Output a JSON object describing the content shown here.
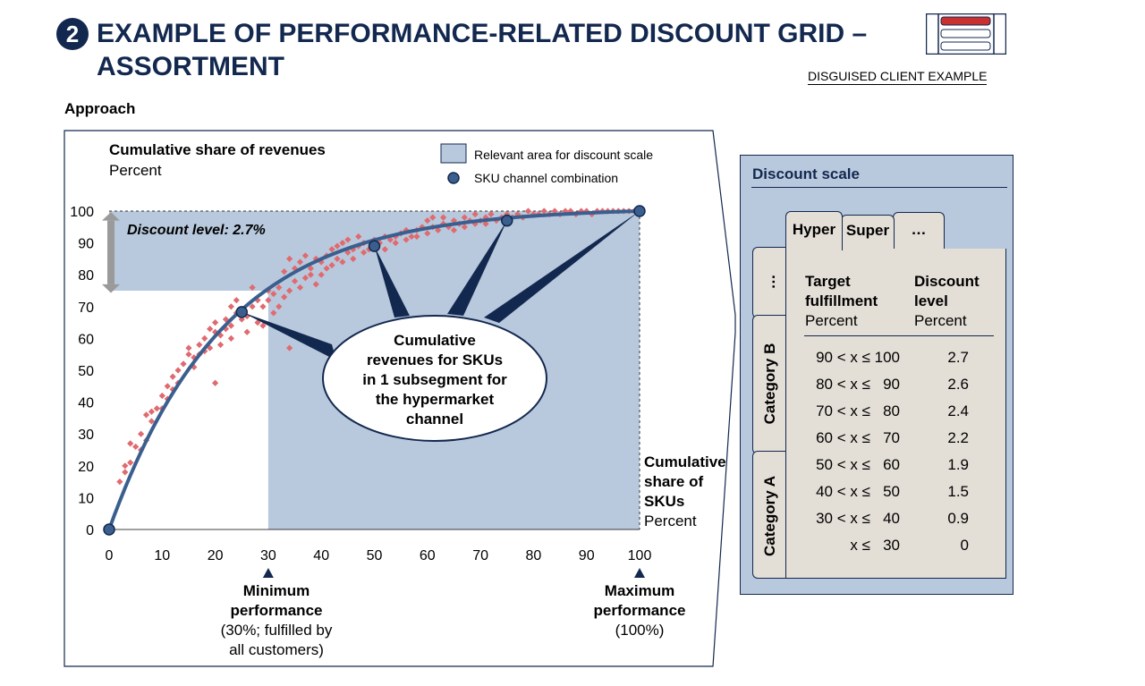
{
  "header": {
    "badge": "2",
    "title_line1": "EXAMPLE OF PERFORMANCE-RELATED DISCOUNT GRID –",
    "title_line2": "ASSORTMENT",
    "client_note": "DISGUISED CLIENT EXAMPLE",
    "section_label": "Approach"
  },
  "colors": {
    "navy": "#13284f",
    "curve": "#3a5f8f",
    "area": "#b8c9dd",
    "points": "#e06a6f",
    "arrow": "#9a9a9a",
    "logo_red": "#c8312f"
  },
  "chart_data": {
    "type": "scatter",
    "title": "Cumulative share of revenues",
    "ylabel_unit": "Percent",
    "xlabel_lines": [
      "Cumulative",
      "share of",
      "SKUs"
    ],
    "xlabel_unit": "Percent",
    "xlim": [
      0,
      100
    ],
    "ylim": [
      0,
      100
    ],
    "x_ticks": [
      0,
      10,
      20,
      30,
      40,
      50,
      60,
      70,
      80,
      90,
      100
    ],
    "y_ticks": [
      0,
      10,
      20,
      30,
      40,
      50,
      60,
      70,
      80,
      90,
      100
    ],
    "legend": {
      "area": "Relevant area for discount scale",
      "marker": "SKU channel combination"
    },
    "discount_label": "Discount level: 2.7%",
    "relevant_area": {
      "x_from": 30,
      "y_threshold": 75
    },
    "curve_k": 0.046,
    "highlight_points": [
      [
        0,
        0
      ],
      [
        25,
        68.3
      ],
      [
        50,
        89
      ],
      [
        75,
        97
      ],
      [
        100,
        100
      ]
    ],
    "scatter": [
      [
        0,
        0
      ],
      [
        2,
        15
      ],
      [
        3,
        20
      ],
      [
        3,
        18
      ],
      [
        4,
        21
      ],
      [
        4,
        27
      ],
      [
        5,
        26
      ],
      [
        6,
        30
      ],
      [
        6,
        25
      ],
      [
        7,
        36
      ],
      [
        7,
        28
      ],
      [
        8,
        37
      ],
      [
        8,
        34
      ],
      [
        9,
        38
      ],
      [
        10,
        38
      ],
      [
        10,
        42
      ],
      [
        11,
        45
      ],
      [
        11,
        41
      ],
      [
        12,
        48
      ],
      [
        12,
        44
      ],
      [
        13,
        46
      ],
      [
        13,
        50
      ],
      [
        14,
        52
      ],
      [
        15,
        55
      ],
      [
        15,
        57
      ],
      [
        16,
        54
      ],
      [
        16,
        51
      ],
      [
        17,
        55
      ],
      [
        17,
        58
      ],
      [
        18,
        56
      ],
      [
        18,
        60
      ],
      [
        19,
        57
      ],
      [
        19,
        63
      ],
      [
        20,
        62
      ],
      [
        20,
        46
      ],
      [
        20,
        65
      ],
      [
        21,
        58
      ],
      [
        21,
        61
      ],
      [
        22,
        63
      ],
      [
        22,
        66
      ],
      [
        23,
        60
      ],
      [
        23,
        64
      ],
      [
        23,
        70
      ],
      [
        24,
        68
      ],
      [
        24,
        72
      ],
      [
        25,
        66
      ],
      [
        25,
        69
      ],
      [
        26,
        62
      ],
      [
        26,
        67
      ],
      [
        27,
        70
      ],
      [
        27,
        76
      ],
      [
        28,
        65
      ],
      [
        28,
        72
      ],
      [
        29,
        64
      ],
      [
        29,
        70
      ],
      [
        30,
        72
      ],
      [
        30,
        75
      ],
      [
        31,
        68
      ],
      [
        31,
        74
      ],
      [
        32,
        70
      ],
      [
        32,
        76
      ],
      [
        33,
        81
      ],
      [
        33,
        73
      ],
      [
        34,
        57
      ],
      [
        34,
        75
      ],
      [
        34,
        85
      ],
      [
        35,
        78
      ],
      [
        35,
        82
      ],
      [
        36,
        76
      ],
      [
        36,
        84
      ],
      [
        37,
        79
      ],
      [
        37,
        86
      ],
      [
        38,
        82
      ],
      [
        38,
        80
      ],
      [
        39,
        77
      ],
      [
        39,
        85
      ],
      [
        40,
        80
      ],
      [
        40,
        84
      ],
      [
        41,
        86
      ],
      [
        41,
        82
      ],
      [
        42,
        88
      ],
      [
        42,
        83
      ],
      [
        43,
        85
      ],
      [
        43,
        89
      ],
      [
        44,
        84
      ],
      [
        44,
        90
      ],
      [
        45,
        87
      ],
      [
        45,
        91
      ],
      [
        46,
        85
      ],
      [
        46,
        88
      ],
      [
        47,
        89
      ],
      [
        47,
        92
      ],
      [
        48,
        87
      ],
      [
        48,
        90
      ],
      [
        49,
        88
      ],
      [
        50,
        91
      ],
      [
        50,
        89
      ],
      [
        51,
        90
      ],
      [
        52,
        92
      ],
      [
        52,
        88
      ],
      [
        53,
        91
      ],
      [
        54,
        92
      ],
      [
        54,
        90
      ],
      [
        55,
        93
      ],
      [
        56,
        91
      ],
      [
        56,
        94
      ],
      [
        57,
        92
      ],
      [
        58,
        94
      ],
      [
        58,
        92
      ],
      [
        59,
        95
      ],
      [
        60,
        93
      ],
      [
        60,
        97
      ],
      [
        61,
        95
      ],
      [
        61,
        98
      ],
      [
        62,
        94
      ],
      [
        63,
        96
      ],
      [
        63,
        98
      ],
      [
        64,
        95
      ],
      [
        65,
        97
      ],
      [
        65,
        94
      ],
      [
        66,
        96
      ],
      [
        67,
        98
      ],
      [
        67,
        95
      ],
      [
        68,
        97
      ],
      [
        69,
        96
      ],
      [
        69,
        99
      ],
      [
        70,
        97
      ],
      [
        71,
        98
      ],
      [
        71,
        96
      ],
      [
        72,
        99
      ],
      [
        73,
        97
      ],
      [
        74,
        98
      ],
      [
        75,
        99
      ],
      [
        76,
        98
      ],
      [
        77,
        99
      ],
      [
        78,
        98
      ],
      [
        79,
        100
      ],
      [
        80,
        99
      ],
      [
        81,
        99
      ],
      [
        82,
        100
      ],
      [
        83,
        99
      ],
      [
        84,
        100
      ],
      [
        85,
        99
      ],
      [
        86,
        100
      ],
      [
        87,
        100
      ],
      [
        88,
        99
      ],
      [
        89,
        100
      ],
      [
        90,
        100
      ],
      [
        91,
        99
      ],
      [
        92,
        100
      ],
      [
        93,
        100
      ],
      [
        94,
        100
      ],
      [
        95,
        100
      ],
      [
        96,
        100
      ],
      [
        97,
        100
      ],
      [
        98,
        100
      ],
      [
        99,
        100
      ],
      [
        100,
        100
      ]
    ],
    "callout_lines": [
      "Cumulative",
      "revenues for SKUs",
      "in 1 subsegment for",
      "the hypermarket",
      "channel"
    ],
    "min_marker": {
      "x": 30,
      "lines": [
        "Minimum",
        "performance",
        "(30%; fulfilled by",
        "all customers)"
      ],
      "bold_lines": 2
    },
    "max_marker": {
      "x": 100,
      "lines": [
        "Maximum",
        "performance",
        "(100%)"
      ],
      "bold_lines": 2
    }
  },
  "scale": {
    "title": "Discount scale",
    "tabs": [
      "Hyper",
      "Super",
      "…"
    ],
    "side_tabs": [
      "…",
      "Category B",
      "Category A"
    ],
    "col1_header": [
      "Target",
      "fulfillment"
    ],
    "col2_header": [
      "Discount",
      "level"
    ],
    "unit": "Percent",
    "rows": [
      {
        "range": "90 < x ≤ 100",
        "value": "2.7"
      },
      {
        "range": "80 < x ≤   90",
        "value": "2.6"
      },
      {
        "range": "70 < x ≤   80",
        "value": "2.4"
      },
      {
        "range": "60 < x ≤   70",
        "value": "2.2"
      },
      {
        "range": "50 < x ≤   60",
        "value": "1.9"
      },
      {
        "range": "40 < x ≤   50",
        "value": "1.5"
      },
      {
        "range": "30 < x ≤   40",
        "value": "0.9"
      },
      {
        "range": "x ≤   30",
        "value": "0"
      }
    ]
  }
}
